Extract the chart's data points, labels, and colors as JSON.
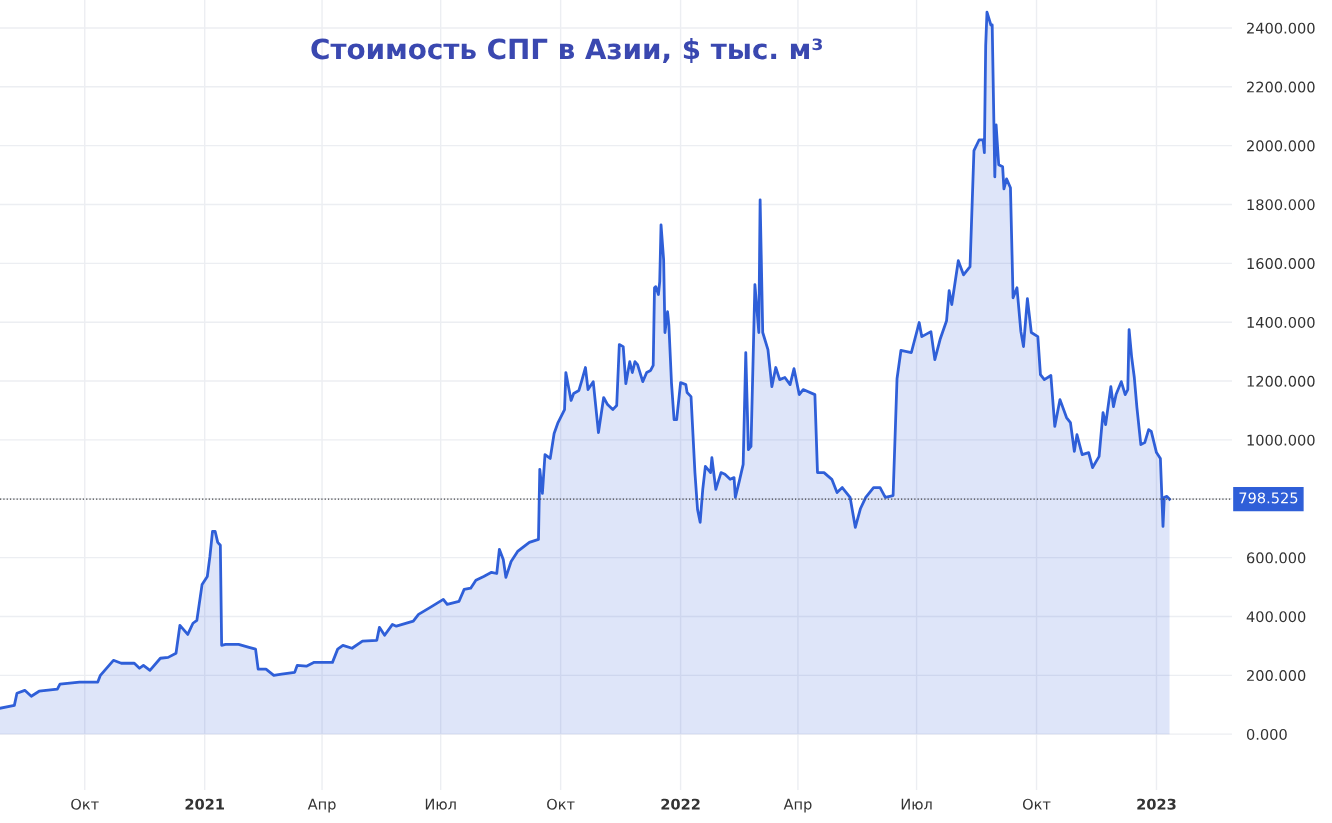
{
  "chart_data": {
    "type": "area",
    "title": "Стоимость СПГ в Азии, $ тыс. м³",
    "x": [
      "2020-07-28",
      "2020-08-08",
      "2020-08-10",
      "2020-08-16",
      "2020-08-21",
      "2020-08-27",
      "2020-09-10",
      "2020-09-12",
      "2020-09-27",
      "2020-10-11",
      "2020-10-13",
      "2020-10-23",
      "2020-10-29",
      "2020-11-08",
      "2020-11-12",
      "2020-11-15",
      "2020-11-20",
      "2020-11-28",
      "2020-12-04",
      "2020-12-10",
      "2020-12-13",
      "2020-12-19",
      "2020-12-23",
      "2020-12-26",
      "2020-12-30",
      "2021-01-03",
      "2021-01-05",
      "2021-01-07",
      "2021-01-09",
      "2021-01-11",
      "2021-01-13",
      "2021-01-14",
      "2021-01-17",
      "2021-01-27",
      "2021-02-04",
      "2021-02-09",
      "2021-02-11",
      "2021-02-17",
      "2021-02-23",
      "2021-03-01",
      "2021-03-11",
      "2021-03-13",
      "2021-03-20",
      "2021-03-26",
      "2021-04-09",
      "2021-04-13",
      "2021-04-17",
      "2021-04-24",
      "2021-05-02",
      "2021-05-13",
      "2021-05-15",
      "2021-05-19",
      "2021-05-25",
      "2021-05-28",
      "2021-06-10",
      "2021-06-14",
      "2021-06-23",
      "2021-07-03",
      "2021-07-06",
      "2021-07-15",
      "2021-07-19",
      "2021-07-24",
      "2021-07-28",
      "2021-08-03",
      "2021-08-09",
      "2021-08-13",
      "2021-08-15",
      "2021-08-18",
      "2021-08-20",
      "2021-08-24",
      "2021-08-29",
      "2021-09-02",
      "2021-09-07",
      "2021-09-14",
      "2021-09-15",
      "2021-09-17",
      "2021-09-19",
      "2021-09-23",
      "2021-09-26",
      "2021-09-29",
      "2021-10-04",
      "2021-10-05",
      "2021-10-09",
      "2021-10-11",
      "2021-10-15",
      "2021-10-17",
      "2021-10-20",
      "2021-10-22",
      "2021-10-26",
      "2021-10-30",
      "2021-11-03",
      "2021-11-06",
      "2021-11-10",
      "2021-11-13",
      "2021-11-15",
      "2021-11-18",
      "2021-11-20",
      "2021-11-23",
      "2021-11-25",
      "2021-11-27",
      "2021-11-29",
      "2021-12-03",
      "2021-12-06",
      "2021-12-09",
      "2021-12-11",
      "2021-12-12",
      "2021-12-13",
      "2021-12-15",
      "2021-12-16",
      "2021-12-17",
      "2021-12-19",
      "2021-12-20",
      "2021-12-22",
      "2021-12-23",
      "2021-12-25",
      "2021-12-27",
      "2021-12-29",
      "2022-01-01",
      "2022-01-05",
      "2022-01-06",
      "2022-01-09",
      "2022-01-12",
      "2022-01-14",
      "2022-01-16",
      "2022-01-18",
      "2022-01-20",
      "2022-01-24",
      "2022-01-25",
      "2022-01-28",
      "2022-02-01",
      "2022-02-04",
      "2022-02-08",
      "2022-02-11",
      "2022-02-12",
      "2022-02-15",
      "2022-02-18",
      "2022-02-20",
      "2022-02-22",
      "2022-02-24",
      "2022-02-27",
      "2022-03-02",
      "2022-03-03",
      "2022-03-05",
      "2022-03-09",
      "2022-03-12",
      "2022-03-15",
      "2022-03-18",
      "2022-03-22",
      "2022-03-26",
      "2022-03-29",
      "2022-04-02",
      "2022-04-05",
      "2022-04-14",
      "2022-04-16",
      "2022-04-21",
      "2022-04-27",
      "2022-05-01",
      "2022-05-05",
      "2022-05-11",
      "2022-05-15",
      "2022-05-19",
      "2022-05-23",
      "2022-05-29",
      "2022-06-03",
      "2022-06-07",
      "2022-06-13",
      "2022-06-16",
      "2022-06-19",
      "2022-06-27",
      "2022-07-03",
      "2022-07-05",
      "2022-07-12",
      "2022-07-15",
      "2022-07-19",
      "2022-07-24",
      "2022-07-26",
      "2022-07-28",
      "2022-08-02",
      "2022-08-06",
      "2022-08-11",
      "2022-08-14",
      "2022-08-18",
      "2022-08-21",
      "2022-08-22",
      "2022-08-23",
      "2022-08-24",
      "2022-08-27",
      "2022-08-28",
      "2022-08-30",
      "2022-08-31",
      "2022-09-02",
      "2022-09-05",
      "2022-09-06",
      "2022-09-08",
      "2022-09-11",
      "2022-09-13",
      "2022-09-16",
      "2022-09-19",
      "2022-09-21",
      "2022-09-24",
      "2022-09-27",
      "2022-10-02",
      "2022-10-04",
      "2022-10-07",
      "2022-10-12",
      "2022-10-15",
      "2022-10-19",
      "2022-10-24",
      "2022-10-27",
      "2022-10-30",
      "2022-11-01",
      "2022-11-05",
      "2022-11-10",
      "2022-11-13",
      "2022-11-18",
      "2022-11-21",
      "2022-11-23",
      "2022-11-27",
      "2022-11-29",
      "2022-12-01",
      "2022-12-05",
      "2022-12-08",
      "2022-12-10",
      "2022-12-11",
      "2022-12-13",
      "2022-12-15",
      "2022-12-17",
      "2022-12-20",
      "2022-12-23",
      "2022-12-26",
      "2022-12-28",
      "2023-01-01",
      "2023-01-04",
      "2023-01-06",
      "2023-01-07",
      "2023-01-09",
      "2023-01-11"
    ],
    "series": [
      {
        "color": "#2f5fd8",
        "values": [
          88,
          98,
          139,
          149,
          129,
          146,
          153,
          170,
          177,
          177,
          200,
          251,
          241,
          241,
          224,
          234,
          217,
          258,
          261,
          275,
          370,
          339,
          377,
          387,
          509,
          536,
          604,
          689,
          689,
          652,
          642,
          302,
          305,
          305,
          295,
          289,
          221,
          221,
          200,
          204,
          210,
          234,
          231,
          244,
          244,
          289,
          302,
          292,
          316,
          319,
          363,
          336,
          373,
          367,
          384,
          407,
          431,
          458,
          441,
          451,
          492,
          496,
          523,
          536,
          550,
          546,
          628,
          594,
          533,
          587,
          621,
          635,
          652,
          662,
          900,
          818,
          950,
          937,
          1022,
          1059,
          1103,
          1229,
          1134,
          1158,
          1168,
          1198,
          1246,
          1171,
          1198,
          1025,
          1144,
          1120,
          1103,
          1117,
          1324,
          1317,
          1191,
          1266,
          1229,
          1266,
          1256,
          1198,
          1229,
          1236,
          1253,
          1517,
          1521,
          1494,
          1538,
          1731,
          1612,
          1365,
          1436,
          1392,
          1195,
          1069,
          1069,
          1195,
          1188,
          1161,
          1147,
          889,
          764,
          720,
          832,
          910,
          889,
          940,
          832,
          889,
          883,
          866,
          872,
          805,
          859,
          917,
          1297,
          967,
          978,
          1528,
          1365,
          1816,
          1365,
          1307,
          1181,
          1246,
          1205,
          1212,
          1188,
          1242,
          1154,
          1171,
          1154,
          889,
          889,
          866,
          821,
          838,
          805,
          703,
          767,
          805,
          838,
          838,
          805,
          811,
          1208,
          1304,
          1297,
          1399,
          1351,
          1368,
          1273,
          1341,
          1405,
          1507,
          1460,
          1609,
          1561,
          1589,
          1983,
          2020,
          2020,
          1976,
          2339,
          2454,
          2410,
          2410,
          1894,
          2071,
          1935,
          1928,
          1853,
          1887,
          1857,
          1483,
          1517,
          1368,
          1317,
          1480,
          1365,
          1351,
          1222,
          1205,
          1219,
          1046,
          1137,
          1076,
          1059,
          961,
          1018,
          950,
          957,
          906,
          944,
          1093,
          1052,
          1181,
          1113,
          1154,
          1198,
          1154,
          1171,
          1375,
          1280,
          1212,
          1110,
          984,
          991,
          1035,
          1029,
          957,
          937,
          706,
          805,
          808,
          798.525
        ]
      }
    ],
    "xlim": [
      "2020-07-28",
      "2023-02-28"
    ],
    "xticks": [
      {
        "value": "2020-10-01",
        "label": "Окт"
      },
      {
        "value": "2021-01-01",
        "label": "2021"
      },
      {
        "value": "2021-04-01",
        "label": "Апр"
      },
      {
        "value": "2021-07-01",
        "label": "Июл"
      },
      {
        "value": "2021-10-01",
        "label": "Окт"
      },
      {
        "value": "2022-01-01",
        "label": "2022"
      },
      {
        "value": "2022-04-01",
        "label": "Апр"
      },
      {
        "value": "2022-07-01",
        "label": "Июл"
      },
      {
        "value": "2022-10-01",
        "label": "Окт"
      },
      {
        "value": "2023-01-01",
        "label": "2023"
      }
    ],
    "ylim": [
      -190,
      2495
    ],
    "yticks": [
      {
        "value": 0,
        "label": "0.000"
      },
      {
        "value": 200,
        "label": "200.000"
      },
      {
        "value": 400,
        "label": "400.000"
      },
      {
        "value": 600,
        "label": "600.000"
      },
      {
        "value": 800,
        "label": null
      },
      {
        "value": 1000,
        "label": "1000.000"
      },
      {
        "value": 1200,
        "label": "1200.000"
      },
      {
        "value": 1400,
        "label": "1400.000"
      },
      {
        "value": 1600,
        "label": "1600.000"
      },
      {
        "value": 1800,
        "label": "1800.000"
      },
      {
        "value": 2000,
        "label": "2000.000"
      },
      {
        "value": 2200,
        "label": "2200.000"
      },
      {
        "value": 2400,
        "label": "2400.000"
      }
    ],
    "ref_lines": [
      {
        "axis": "y",
        "value": 798.525,
        "label": "798.525",
        "color": "#444444",
        "line_style": "dotted"
      }
    ],
    "grid": true,
    "legend": false
  }
}
